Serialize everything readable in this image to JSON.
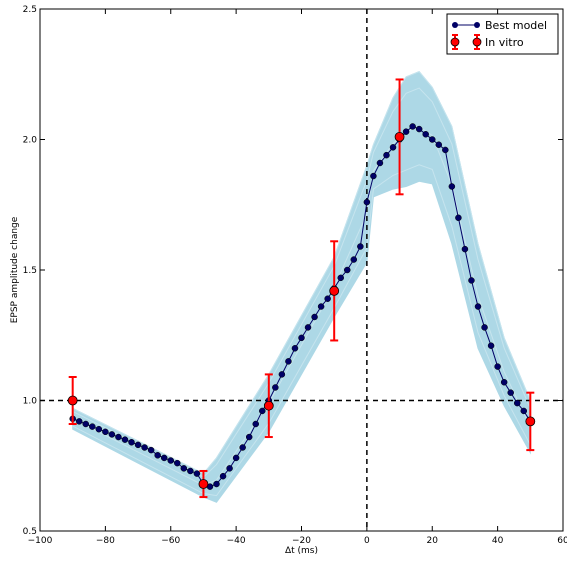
{
  "chart_data": {
    "type": "line",
    "xlabel": "Δt (ms)",
    "ylabel": "EPSP amplitude change",
    "xlim": [
      -100,
      60
    ],
    "ylim": [
      0.5,
      2.5
    ],
    "x_ticks": [
      -100,
      -80,
      -60,
      -40,
      -20,
      0,
      20,
      40,
      60
    ],
    "y_ticks": [
      0.5,
      1.0,
      1.5,
      2.0,
      2.5
    ],
    "x_tick_labels": [
      "−100",
      "−80",
      "−60",
      "−40",
      "−20",
      "0",
      "20",
      "40",
      "60"
    ],
    "y_tick_labels": [
      "0.5",
      "1.0",
      "1.5",
      "2.0",
      "2.5"
    ],
    "reference_lines": {
      "y": 1.0,
      "x": 0
    },
    "legend_position": "top-right",
    "series": [
      {
        "name": "Best model",
        "color": "#000066",
        "marker": "circle",
        "x": [
          -90,
          -88,
          -86,
          -84,
          -82,
          -80,
          -78,
          -76,
          -74,
          -72,
          -70,
          -68,
          -66,
          -64,
          -62,
          -60,
          -58,
          -56,
          -54,
          -52,
          -50,
          -48,
          -46,
          -44,
          -42,
          -40,
          -38,
          -36,
          -34,
          -32,
          -30,
          -28,
          -26,
          -24,
          -22,
          -20,
          -18,
          -16,
          -14,
          -12,
          -10,
          -8,
          -6,
          -4,
          -2,
          0,
          2,
          4,
          6,
          8,
          10,
          12,
          14,
          16,
          18,
          20,
          22,
          24,
          26,
          28,
          30,
          32,
          34,
          36,
          38,
          40,
          42,
          44,
          46,
          48,
          50
        ],
        "y": [
          0.93,
          0.92,
          0.91,
          0.9,
          0.89,
          0.88,
          0.87,
          0.86,
          0.85,
          0.84,
          0.83,
          0.82,
          0.81,
          0.79,
          0.78,
          0.77,
          0.76,
          0.74,
          0.73,
          0.72,
          0.68,
          0.67,
          0.68,
          0.71,
          0.74,
          0.78,
          0.82,
          0.86,
          0.91,
          0.96,
          1.0,
          1.05,
          1.1,
          1.15,
          1.2,
          1.24,
          1.28,
          1.32,
          1.36,
          1.39,
          1.43,
          1.47,
          1.5,
          1.54,
          1.59,
          1.76,
          1.86,
          1.91,
          1.94,
          1.97,
          2.0,
          2.03,
          2.05,
          2.04,
          2.02,
          2.0,
          1.98,
          1.96,
          1.82,
          1.7,
          1.58,
          1.46,
          1.36,
          1.28,
          1.21,
          1.13,
          1.07,
          1.03,
          0.99,
          0.96,
          0.92
        ]
      },
      {
        "name": "In vitro",
        "color": "#ff0000",
        "marker": "circle-errorbar",
        "x": [
          -90,
          -50,
          -30,
          -10,
          10,
          50
        ],
        "y": [
          1.0,
          0.68,
          0.98,
          1.42,
          2.01,
          0.92
        ],
        "yerr": [
          0.09,
          0.05,
          0.12,
          0.19,
          0.22,
          0.11
        ]
      },
      {
        "name": "",
        "color": "#add8e6",
        "style": "envelope-band",
        "x": [
          -90,
          -50,
          -46,
          -30,
          -10,
          0,
          2,
          8,
          12,
          16,
          20,
          26,
          34,
          42,
          50
        ],
        "y_low": [
          0.89,
          0.63,
          0.61,
          0.88,
          1.32,
          1.53,
          1.78,
          1.81,
          1.82,
          1.84,
          1.83,
          1.6,
          1.2,
          0.98,
          0.8
        ],
        "y_high": [
          0.97,
          0.72,
          0.78,
          1.1,
          1.55,
          1.9,
          1.98,
          2.16,
          2.24,
          2.26,
          2.2,
          2.05,
          1.6,
          1.24,
          1.0
        ]
      }
    ]
  }
}
